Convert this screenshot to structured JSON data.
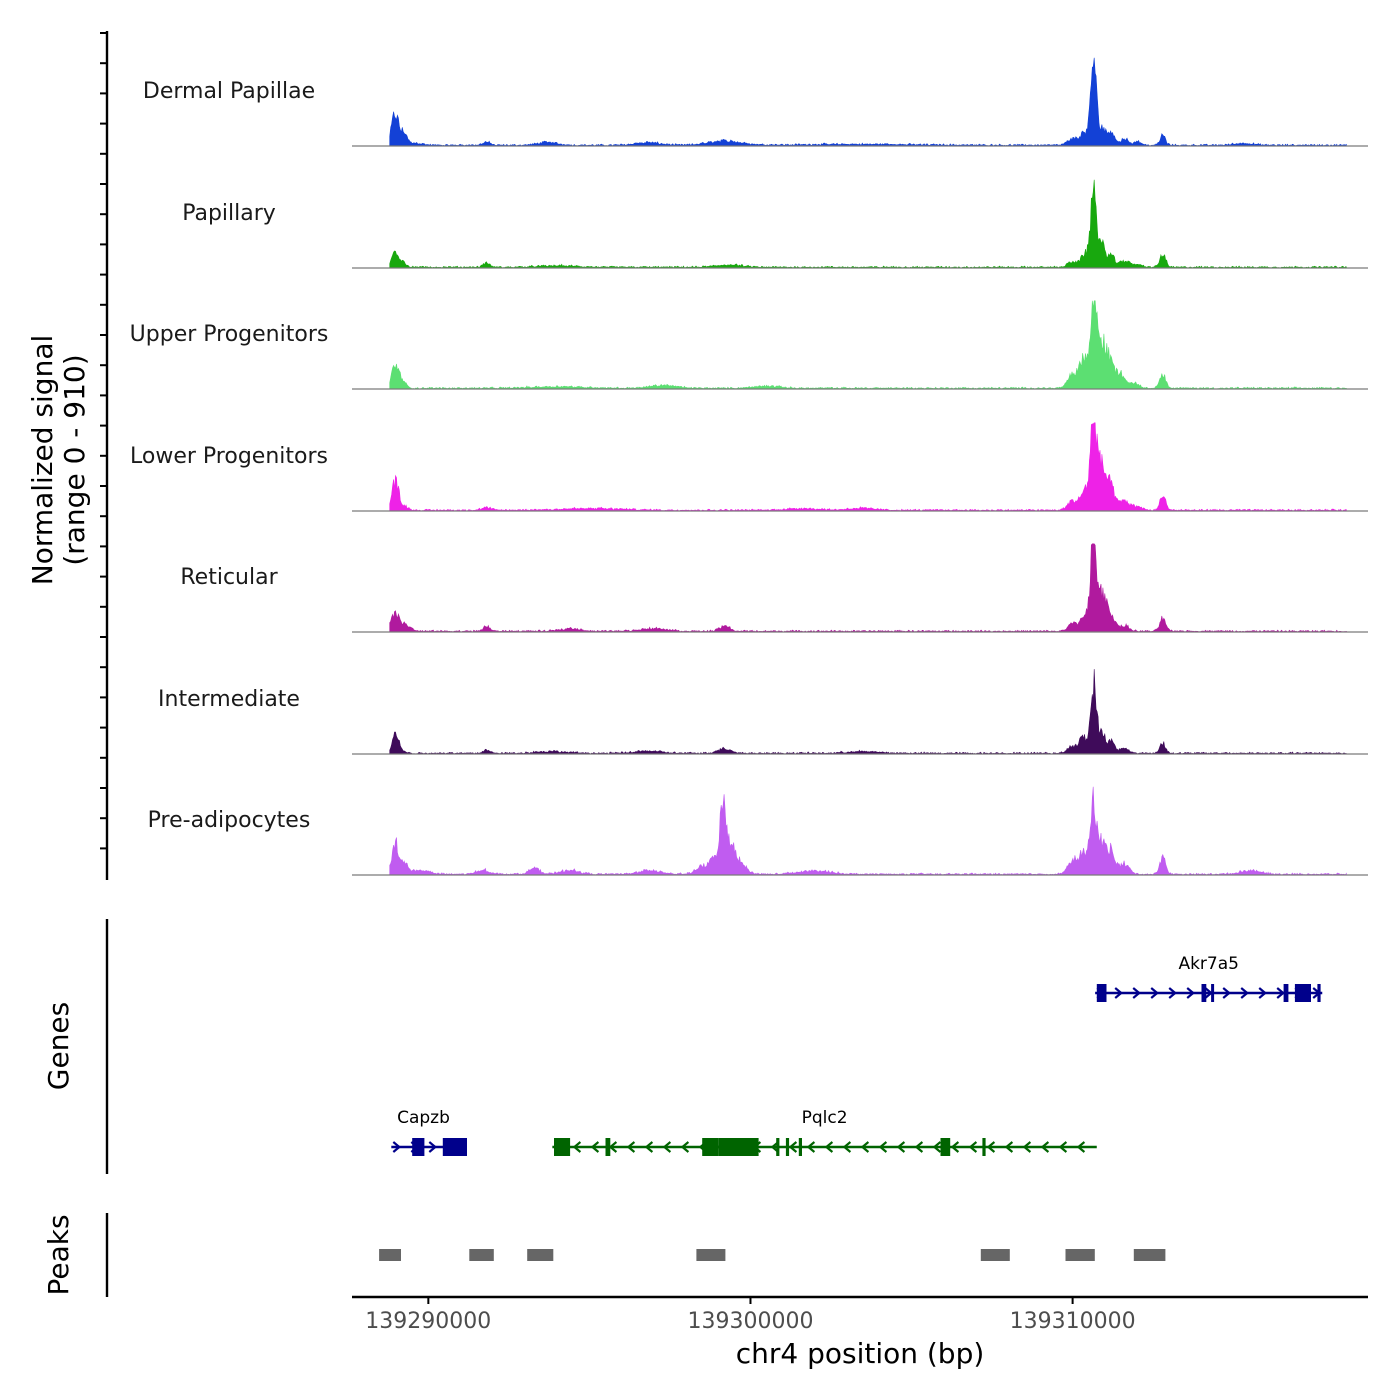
{
  "chart_data": {
    "type": "area",
    "title": "",
    "chromosome": "chr4",
    "xlabel": "chr4 position (bp)",
    "ylabel": "Normalized signal\n(range 0 - 910)",
    "y_range": [
      0,
      910
    ],
    "xlim": [
      139287630,
      139319170
    ],
    "x_ticks": [
      139290000,
      139300000,
      139310000
    ],
    "x_tick_labels": [
      "139290000",
      "139300000",
      "139310000"
    ],
    "tracks": [
      {
        "name": "Dermal Papillae",
        "color": "#1341d6",
        "peaks": [
          [
            139288970,
            340,
            110
          ],
          [
            139289250,
            130,
            90
          ],
          [
            139289600,
            25,
            220
          ],
          [
            139291800,
            35,
            120
          ],
          [
            139293700,
            30,
            300
          ],
          [
            139296800,
            28,
            400
          ],
          [
            139299200,
            45,
            500
          ],
          [
            139303400,
            10,
            1800
          ],
          [
            139310000,
            65,
            160
          ],
          [
            139310400,
            140,
            150
          ],
          [
            139310650,
            910,
            80
          ],
          [
            139310900,
            200,
            120
          ],
          [
            139311200,
            150,
            100
          ],
          [
            139311600,
            70,
            120
          ],
          [
            139312000,
            40,
            120
          ],
          [
            139312800,
            110,
            80
          ],
          [
            139315300,
            20,
            300
          ]
        ]
      },
      {
        "name": "Papillary",
        "color": "#18a80e",
        "peaks": [
          [
            139288970,
            180,
            100
          ],
          [
            139289200,
            60,
            100
          ],
          [
            139291800,
            40,
            100
          ],
          [
            139294000,
            15,
            600
          ],
          [
            139299300,
            25,
            400
          ],
          [
            139310000,
            60,
            150
          ],
          [
            139310400,
            150,
            120
          ],
          [
            139310650,
            910,
            80
          ],
          [
            139310900,
            240,
            120
          ],
          [
            139311200,
            120,
            100
          ],
          [
            139311600,
            70,
            150
          ],
          [
            139312000,
            30,
            150
          ],
          [
            139312800,
            140,
            90
          ]
        ]
      },
      {
        "name": "Upper Progenitors",
        "color": "#5cdf72",
        "peaks": [
          [
            139288970,
            250,
            110
          ],
          [
            139289200,
            70,
            100
          ],
          [
            139294000,
            18,
            800
          ],
          [
            139297300,
            30,
            400
          ],
          [
            139300500,
            22,
            400
          ],
          [
            139310000,
            160,
            150
          ],
          [
            139310350,
            340,
            120
          ],
          [
            139310650,
            910,
            90
          ],
          [
            139310900,
            520,
            140
          ],
          [
            139311200,
            250,
            120
          ],
          [
            139311500,
            150,
            120
          ],
          [
            139311900,
            60,
            150
          ],
          [
            139312800,
            160,
            90
          ]
        ]
      },
      {
        "name": "Lower Progenitors",
        "color": "#ee22e7",
        "peaks": [
          [
            139288970,
            300,
            110
          ],
          [
            139289250,
            40,
            120
          ],
          [
            139291800,
            25,
            150
          ],
          [
            139295000,
            18,
            1000
          ],
          [
            139301600,
            20,
            500
          ],
          [
            139303400,
            22,
            400
          ],
          [
            139310000,
            100,
            150
          ],
          [
            139310400,
            220,
            140
          ],
          [
            139310650,
            910,
            90
          ],
          [
            139310900,
            480,
            140
          ],
          [
            139311200,
            220,
            120
          ],
          [
            139311600,
            100,
            150
          ],
          [
            139312000,
            40,
            150
          ],
          [
            139312800,
            150,
            90
          ]
        ]
      },
      {
        "name": "Reticular",
        "color": "#b01a9e",
        "peaks": [
          [
            139288970,
            180,
            130
          ],
          [
            139289300,
            70,
            140
          ],
          [
            139291800,
            55,
            100
          ],
          [
            139294400,
            30,
            300
          ],
          [
            139297000,
            30,
            400
          ],
          [
            139299200,
            60,
            150
          ],
          [
            139310000,
            80,
            140
          ],
          [
            139310400,
            190,
            140
          ],
          [
            139310650,
            910,
            90
          ],
          [
            139310900,
            390,
            140
          ],
          [
            139311200,
            160,
            120
          ],
          [
            139311600,
            60,
            150
          ],
          [
            139312800,
            150,
            90
          ]
        ]
      },
      {
        "name": "Intermediate",
        "color": "#3f0b5a",
        "peaks": [
          [
            139288970,
            200,
            90
          ],
          [
            139289150,
            40,
            100
          ],
          [
            139291800,
            35,
            100
          ],
          [
            139293800,
            18,
            500
          ],
          [
            139296800,
            25,
            400
          ],
          [
            139299200,
            50,
            200
          ],
          [
            139303500,
            18,
            500
          ],
          [
            139310000,
            80,
            150
          ],
          [
            139310350,
            180,
            120
          ],
          [
            139310650,
            720,
            85
          ],
          [
            139310900,
            210,
            120
          ],
          [
            139311200,
            130,
            100
          ],
          [
            139311600,
            50,
            150
          ],
          [
            139312800,
            110,
            90
          ]
        ]
      },
      {
        "name": "Pre-adipocytes",
        "color": "#c05cf0",
        "peaks": [
          [
            139288970,
            340,
            100
          ],
          [
            139289250,
            110,
            100
          ],
          [
            139289700,
            45,
            300
          ],
          [
            139291700,
            45,
            200
          ],
          [
            139293300,
            70,
            150
          ],
          [
            139294400,
            40,
            300
          ],
          [
            139296900,
            40,
            350
          ],
          [
            139298500,
            80,
            200
          ],
          [
            139298900,
            160,
            150
          ],
          [
            139299150,
            650,
            100
          ],
          [
            139299400,
            290,
            140
          ],
          [
            139299700,
            100,
            200
          ],
          [
            139302000,
            35,
            500
          ],
          [
            139310000,
            140,
            150
          ],
          [
            139310350,
            230,
            140
          ],
          [
            139310650,
            720,
            90
          ],
          [
            139310900,
            330,
            140
          ],
          [
            139311200,
            230,
            120
          ],
          [
            139311600,
            110,
            150
          ],
          [
            139312800,
            170,
            90
          ],
          [
            139315500,
            40,
            300
          ]
        ]
      }
    ],
    "genes": [
      {
        "name": "Capzb",
        "strand": "+",
        "color": "#00008b",
        "row": 2,
        "start": 139288850,
        "end": 139290850,
        "exons": [
          [
            139289500,
            139289880
          ],
          [
            139290450,
            139291200
          ]
        ]
      },
      {
        "name": "Pqlc2",
        "strand": "-",
        "color": "#006400",
        "row": 2,
        "start": 139293850,
        "end": 139310750,
        "exons": [
          [
            139293900,
            139294400
          ],
          [
            139295500,
            139295650
          ],
          [
            139298500,
            139299000
          ],
          [
            139299000,
            139300250
          ],
          [
            139300800,
            139300900
          ],
          [
            139301100,
            139301200
          ],
          [
            139301500,
            139301600
          ],
          [
            139305900,
            139306200
          ],
          [
            139307200,
            139307300
          ]
        ]
      },
      {
        "name": "Akr7a5",
        "strand": "+",
        "color": "#00008b",
        "row": 1,
        "start": 139310700,
        "end": 139317750,
        "exons": [
          [
            139310750,
            139311050
          ],
          [
            139314000,
            139314150
          ],
          [
            139314300,
            139314350
          ],
          [
            139316550,
            139316700
          ],
          [
            139316900,
            139317400
          ],
          [
            139317600,
            139317700
          ]
        ]
      }
    ],
    "peak_regions": [
      [
        139288470,
        139289150
      ],
      [
        139291270,
        139292030
      ],
      [
        139293070,
        139293880
      ],
      [
        139298320,
        139299220
      ],
      [
        139307150,
        139308050
      ],
      [
        139309780,
        139310690
      ],
      [
        139311900,
        139312880
      ]
    ],
    "panel_titles": {
      "genes": "Genes",
      "peaks": "Peaks"
    }
  }
}
